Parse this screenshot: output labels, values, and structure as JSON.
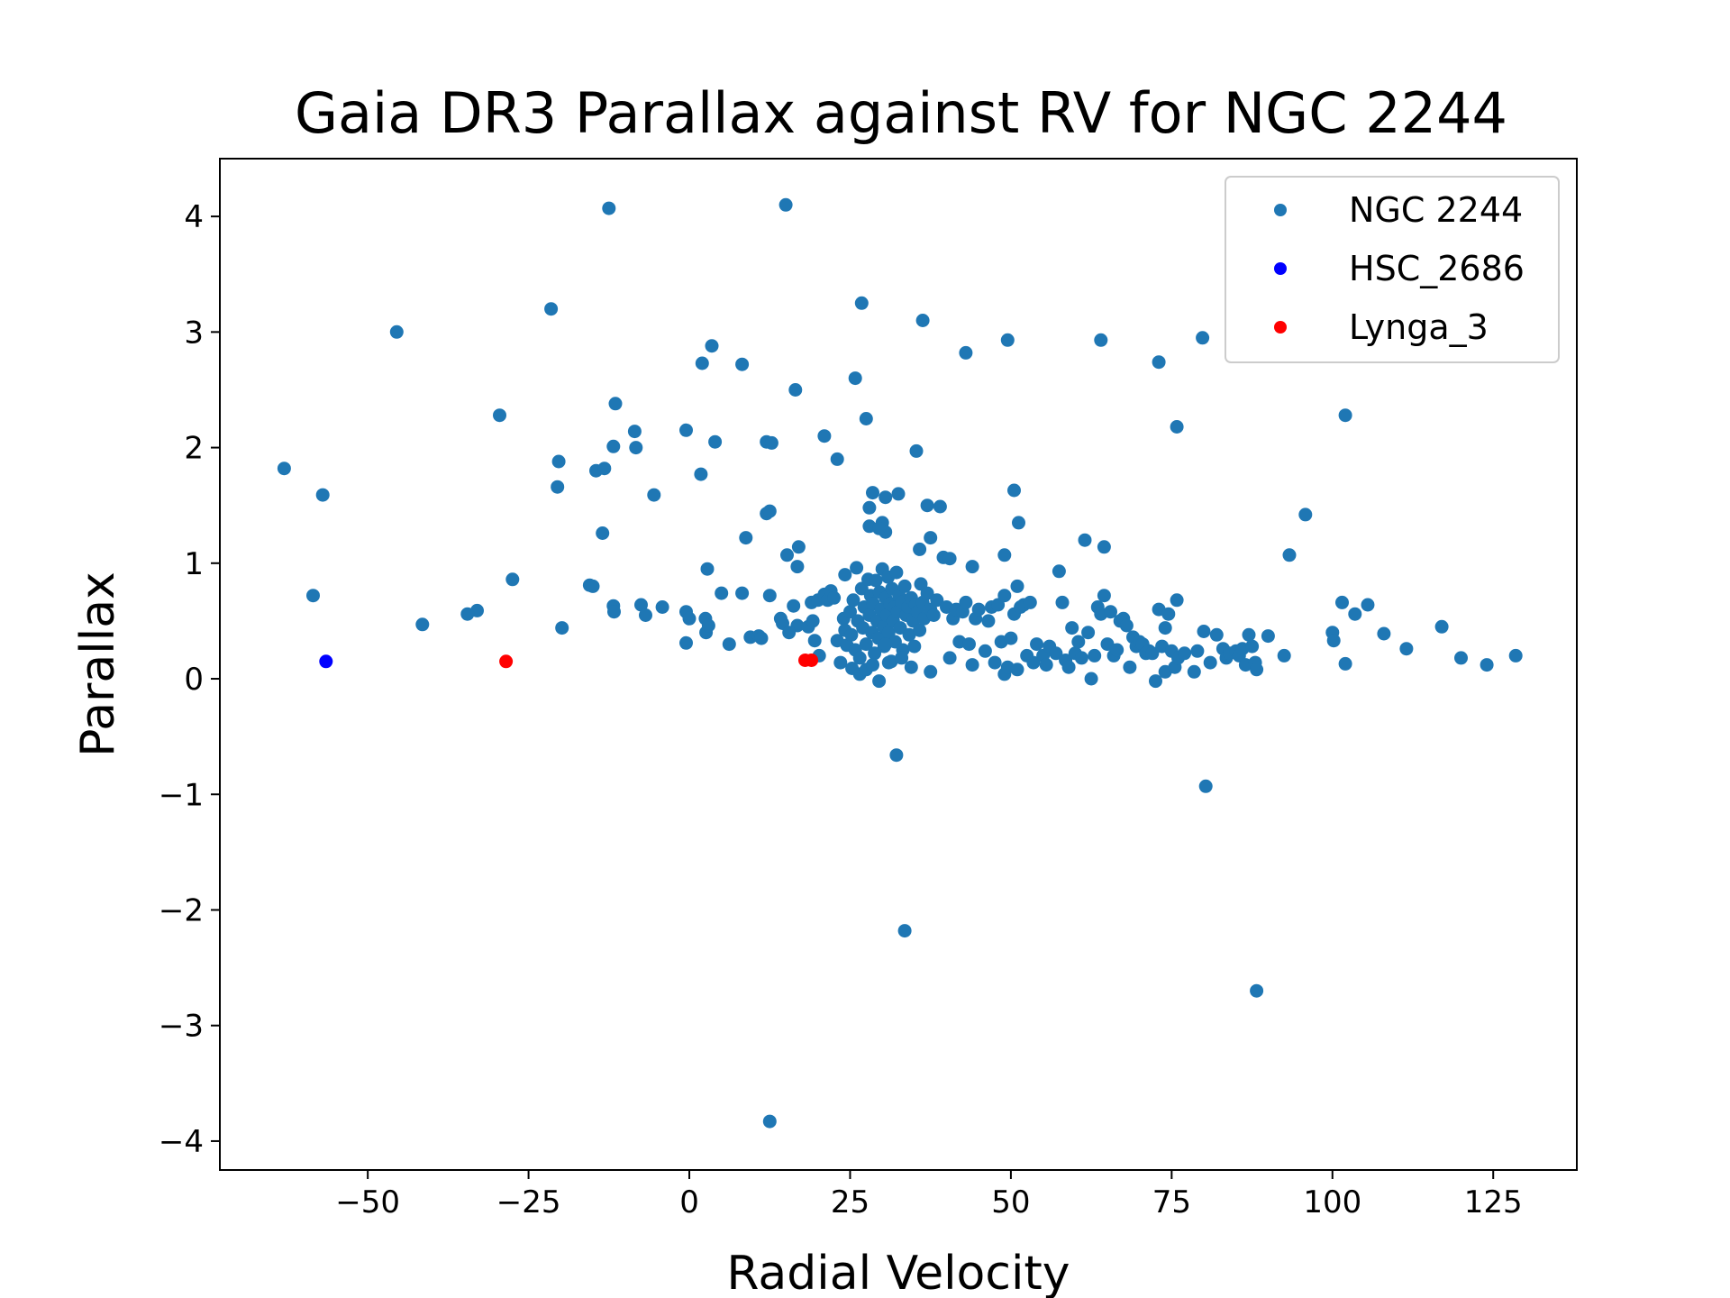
{
  "chart_data": {
    "type": "scatter",
    "title": "Gaia DR3 Parallax against RV for NGC 2244",
    "xlabel": "Radial Velocity",
    "ylabel": "Parallax",
    "xlim": [
      -73,
      138
    ],
    "ylim": [
      -4.25,
      4.5
    ],
    "xticks": [
      -50,
      -25,
      0,
      25,
      50,
      75,
      100,
      125
    ],
    "xtick_labels": [
      "−50",
      "−25",
      "0",
      "25",
      "50",
      "75",
      "100",
      "125"
    ],
    "yticks": [
      -4,
      -3,
      -2,
      -1,
      0,
      1,
      2,
      3,
      4
    ],
    "ytick_labels": [
      "−4",
      "−3",
      "−2",
      "−1",
      "0",
      "1",
      "2",
      "3",
      "4"
    ],
    "grid": false,
    "legend_position": "top-right",
    "series": [
      {
        "name": "NGC 2244",
        "color": "#1f77b4",
        "points": [
          [
            -12.5,
            4.07
          ],
          [
            15.0,
            4.1
          ],
          [
            -21.5,
            3.2
          ],
          [
            -45.5,
            3.0
          ],
          [
            26.8,
            3.25
          ],
          [
            36.3,
            3.1
          ],
          [
            3.5,
            2.88
          ],
          [
            2.0,
            2.73
          ],
          [
            8.2,
            2.72
          ],
          [
            43.0,
            2.82
          ],
          [
            49.5,
            2.93
          ],
          [
            64.0,
            2.93
          ],
          [
            73.0,
            2.74
          ],
          [
            79.8,
            2.95
          ],
          [
            16.5,
            2.5
          ],
          [
            25.8,
            2.6
          ],
          [
            -29.5,
            2.28
          ],
          [
            -11.5,
            2.38
          ],
          [
            -8.5,
            2.14
          ],
          [
            -0.5,
            2.15
          ],
          [
            27.5,
            2.25
          ],
          [
            21.0,
            2.1
          ],
          [
            4.0,
            2.05
          ],
          [
            12.0,
            2.05
          ],
          [
            12.8,
            2.04
          ],
          [
            23.0,
            1.9
          ],
          [
            -11.8,
            2.01
          ],
          [
            -8.3,
            2.0
          ],
          [
            -20.3,
            1.88
          ],
          [
            -14.5,
            1.8
          ],
          [
            -13.2,
            1.82
          ],
          [
            -63.0,
            1.82
          ],
          [
            -57.0,
            1.59
          ],
          [
            -20.5,
            1.66
          ],
          [
            1.8,
            1.77
          ],
          [
            -5.5,
            1.59
          ],
          [
            35.3,
            1.97
          ],
          [
            75.8,
            2.18
          ],
          [
            102.0,
            2.28
          ],
          [
            28.5,
            1.61
          ],
          [
            30.5,
            1.57
          ],
          [
            32.5,
            1.6
          ],
          [
            50.5,
            1.63
          ],
          [
            28.0,
            1.48
          ],
          [
            37.0,
            1.5
          ],
          [
            39.0,
            1.49
          ],
          [
            12.0,
            1.43
          ],
          [
            12.5,
            1.45
          ],
          [
            -13.5,
            1.26
          ],
          [
            28.0,
            1.32
          ],
          [
            30.0,
            1.35
          ],
          [
            30.5,
            1.27
          ],
          [
            29.5,
            1.3
          ],
          [
            51.2,
            1.35
          ],
          [
            95.8,
            1.42
          ],
          [
            8.8,
            1.22
          ],
          [
            17.0,
            1.14
          ],
          [
            15.2,
            1.07
          ],
          [
            35.8,
            1.12
          ],
          [
            37.5,
            1.22
          ],
          [
            39.5,
            1.05
          ],
          [
            40.5,
            1.04
          ],
          [
            61.5,
            1.2
          ],
          [
            64.5,
            1.14
          ],
          [
            93.3,
            1.07
          ],
          [
            49.0,
            1.07
          ],
          [
            -58.5,
            0.72
          ],
          [
            -27.5,
            0.86
          ],
          [
            -33.0,
            0.59
          ],
          [
            -34.5,
            0.56
          ],
          [
            -41.5,
            0.47
          ],
          [
            -19.8,
            0.44
          ],
          [
            -15.5,
            0.81
          ],
          [
            -15.0,
            0.8
          ],
          [
            -11.8,
            0.63
          ],
          [
            -11.7,
            0.58
          ],
          [
            -7.5,
            0.64
          ],
          [
            -6.8,
            0.55
          ],
          [
            -4.2,
            0.62
          ],
          [
            -0.5,
            0.58
          ],
          [
            0.0,
            0.52
          ],
          [
            2.5,
            0.52
          ],
          [
            2.6,
            0.4
          ],
          [
            3.0,
            0.46
          ],
          [
            -0.5,
            0.31
          ],
          [
            2.8,
            0.95
          ],
          [
            5.0,
            0.74
          ],
          [
            6.2,
            0.3
          ],
          [
            8.2,
            0.74
          ],
          [
            9.5,
            0.36
          ],
          [
            10.8,
            0.37
          ],
          [
            11.2,
            0.35
          ],
          [
            12.5,
            0.72
          ],
          [
            14.2,
            0.52
          ],
          [
            14.5,
            0.48
          ],
          [
            16.2,
            0.63
          ],
          [
            16.8,
            0.46
          ],
          [
            15.5,
            0.4
          ],
          [
            16.8,
            0.97
          ],
          [
            18.5,
            0.45
          ],
          [
            19.0,
            0.66
          ],
          [
            19.2,
            0.5
          ],
          [
            19.5,
            0.33
          ],
          [
            20.0,
            0.68
          ],
          [
            20.2,
            0.2
          ],
          [
            21.0,
            0.73
          ],
          [
            21.5,
            0.68
          ],
          [
            22.0,
            0.76
          ],
          [
            22.5,
            0.7
          ],
          [
            23.0,
            0.33
          ],
          [
            23.5,
            0.14
          ],
          [
            24.0,
            0.52
          ],
          [
            24.2,
            0.42
          ],
          [
            24.5,
            0.29
          ],
          [
            24.2,
            0.9
          ],
          [
            25.0,
            0.58
          ],
          [
            25.2,
            0.38
          ],
          [
            25.3,
            0.09
          ],
          [
            25.5,
            0.68
          ],
          [
            25.8,
            0.25
          ],
          [
            26.0,
            0.96
          ],
          [
            26.2,
            0.5
          ],
          [
            26.5,
            0.18
          ],
          [
            26.8,
            0.78
          ],
          [
            27.0,
            0.44
          ],
          [
            27.2,
            0.62
          ],
          [
            27.5,
            0.3
          ],
          [
            27.8,
            0.86
          ],
          [
            28.0,
            0.55
          ],
          [
            28.2,
            0.72
          ],
          [
            28.4,
            0.4
          ],
          [
            28.6,
            0.65
          ],
          [
            28.8,
            0.22
          ],
          [
            29.0,
            0.85
          ],
          [
            29.2,
            0.5
          ],
          [
            29.4,
            0.35
          ],
          [
            29.6,
            0.75
          ],
          [
            29.8,
            0.6
          ],
          [
            30.0,
            0.95
          ],
          [
            30.2,
            0.45
          ],
          [
            30.3,
            0.28
          ],
          [
            30.5,
            0.7
          ],
          [
            30.7,
            0.55
          ],
          [
            30.9,
            0.88
          ],
          [
            31.0,
            0.4
          ],
          [
            31.2,
            0.65
          ],
          [
            31.4,
            0.15
          ],
          [
            31.5,
            0.78
          ],
          [
            31.7,
            0.5
          ],
          [
            31.9,
            0.62
          ],
          [
            32.0,
            0.32
          ],
          [
            32.2,
            0.92
          ],
          [
            32.4,
            0.58
          ],
          [
            32.6,
            0.72
          ],
          [
            32.8,
            0.44
          ],
          [
            33.0,
            0.66
          ],
          [
            33.2,
            0.25
          ],
          [
            33.5,
            0.8
          ],
          [
            33.7,
            0.55
          ],
          [
            34.0,
            0.62
          ],
          [
            34.2,
            0.38
          ],
          [
            34.5,
            0.7
          ],
          [
            34.8,
            0.5
          ],
          [
            35.0,
            0.28
          ],
          [
            35.2,
            0.64
          ],
          [
            35.5,
            0.58
          ],
          [
            35.8,
            0.42
          ],
          [
            36.0,
            0.82
          ],
          [
            36.3,
            0.66
          ],
          [
            36.5,
            0.52
          ],
          [
            37.0,
            0.74
          ],
          [
            37.5,
            0.6
          ],
          [
            38.0,
            0.55
          ],
          [
            38.5,
            0.68
          ],
          [
            29.5,
            -0.02
          ],
          [
            26.5,
            0.04
          ],
          [
            27.5,
            0.08
          ],
          [
            31.0,
            0.14
          ],
          [
            33.0,
            0.18
          ],
          [
            34.5,
            0.1
          ],
          [
            37.5,
            0.06
          ],
          [
            30.5,
            0.3
          ],
          [
            28.5,
            0.12
          ],
          [
            40.0,
            0.62
          ],
          [
            40.5,
            0.18
          ],
          [
            41.0,
            0.52
          ],
          [
            41.5,
            0.6
          ],
          [
            42.0,
            0.32
          ],
          [
            42.5,
            0.58
          ],
          [
            43.0,
            0.66
          ],
          [
            43.5,
            0.3
          ],
          [
            44.0,
            0.97
          ],
          [
            44.0,
            0.12
          ],
          [
            44.5,
            0.52
          ],
          [
            45.0,
            0.6
          ],
          [
            46.0,
            0.24
          ],
          [
            46.5,
            0.5
          ],
          [
            47.0,
            0.62
          ],
          [
            47.5,
            0.14
          ],
          [
            48.0,
            0.64
          ],
          [
            48.5,
            0.32
          ],
          [
            49.0,
            0.72
          ],
          [
            49.0,
            0.04
          ],
          [
            49.5,
            0.1
          ],
          [
            50.0,
            0.35
          ],
          [
            50.5,
            0.56
          ],
          [
            51.0,
            0.08
          ],
          [
            51.0,
            0.8
          ],
          [
            51.5,
            0.62
          ],
          [
            52.0,
            0.64
          ],
          [
            52.5,
            0.2
          ],
          [
            53.0,
            0.66
          ],
          [
            53.5,
            0.14
          ],
          [
            54.0,
            0.3
          ],
          [
            55.0,
            0.2
          ],
          [
            55.5,
            0.12
          ],
          [
            56.0,
            0.28
          ],
          [
            57.0,
            0.22
          ],
          [
            57.5,
            0.93
          ],
          [
            58.0,
            0.66
          ],
          [
            58.5,
            0.16
          ],
          [
            59.0,
            0.1
          ],
          [
            59.5,
            0.44
          ],
          [
            60.0,
            0.22
          ],
          [
            60.5,
            0.32
          ],
          [
            61.0,
            0.18
          ],
          [
            62.0,
            0.4
          ],
          [
            62.5,
            0.0
          ],
          [
            63.0,
            0.2
          ],
          [
            63.5,
            0.62
          ],
          [
            64.0,
            0.56
          ],
          [
            64.5,
            0.72
          ],
          [
            65.0,
            0.3
          ],
          [
            65.5,
            0.58
          ],
          [
            66.0,
            0.2
          ],
          [
            66.5,
            0.25
          ],
          [
            67.0,
            0.5
          ],
          [
            67.5,
            0.52
          ],
          [
            68.0,
            0.46
          ],
          [
            68.5,
            0.1
          ],
          [
            69.0,
            0.36
          ],
          [
            69.5,
            0.28
          ],
          [
            70.0,
            0.32
          ],
          [
            70.5,
            0.3
          ],
          [
            71.0,
            0.22
          ],
          [
            71.5,
            0.24
          ],
          [
            72.0,
            0.22
          ],
          [
            72.5,
            -0.02
          ],
          [
            73.0,
            0.6
          ],
          [
            73.5,
            0.28
          ],
          [
            74.0,
            0.44
          ],
          [
            74.0,
            0.06
          ],
          [
            74.5,
            0.56
          ],
          [
            75.0,
            0.24
          ],
          [
            75.5,
            0.1
          ],
          [
            75.8,
            0.68
          ],
          [
            76.0,
            0.18
          ],
          [
            77.0,
            0.22
          ],
          [
            78.5,
            0.06
          ],
          [
            79.0,
            0.24
          ],
          [
            80.0,
            0.41
          ],
          [
            81.0,
            0.14
          ],
          [
            82.0,
            0.38
          ],
          [
            83.0,
            0.26
          ],
          [
            83.5,
            0.18
          ],
          [
            84.0,
            0.22
          ],
          [
            85.0,
            0.24
          ],
          [
            85.5,
            0.2
          ],
          [
            86.0,
            0.26
          ],
          [
            86.5,
            0.12
          ],
          [
            87.0,
            0.38
          ],
          [
            87.5,
            0.28
          ],
          [
            88.0,
            0.14
          ],
          [
            88.2,
            0.08
          ],
          [
            90.0,
            0.37
          ],
          [
            92.5,
            0.2
          ],
          [
            100.0,
            0.4
          ],
          [
            100.2,
            0.33
          ],
          [
            101.5,
            0.66
          ],
          [
            102.0,
            0.13
          ],
          [
            103.5,
            0.56
          ],
          [
            105.5,
            0.64
          ],
          [
            108.0,
            0.39
          ],
          [
            111.5,
            0.26
          ],
          [
            117.0,
            0.45
          ],
          [
            120.0,
            0.18
          ],
          [
            124.0,
            0.12
          ],
          [
            128.5,
            0.2
          ],
          [
            32.2,
            -0.66
          ],
          [
            80.3,
            -0.93
          ],
          [
            33.5,
            -2.18
          ],
          [
            88.2,
            -2.7
          ],
          [
            12.5,
            -3.83
          ]
        ]
      },
      {
        "name": "HSC_2686",
        "color": "#0000ff",
        "points": [
          [
            -56.5,
            0.15
          ]
        ]
      },
      {
        "name": "Lynga_3",
        "color": "#ff0000",
        "points": [
          [
            -28.5,
            0.15
          ],
          [
            18.0,
            0.16
          ],
          [
            19.0,
            0.16
          ]
        ]
      }
    ]
  }
}
